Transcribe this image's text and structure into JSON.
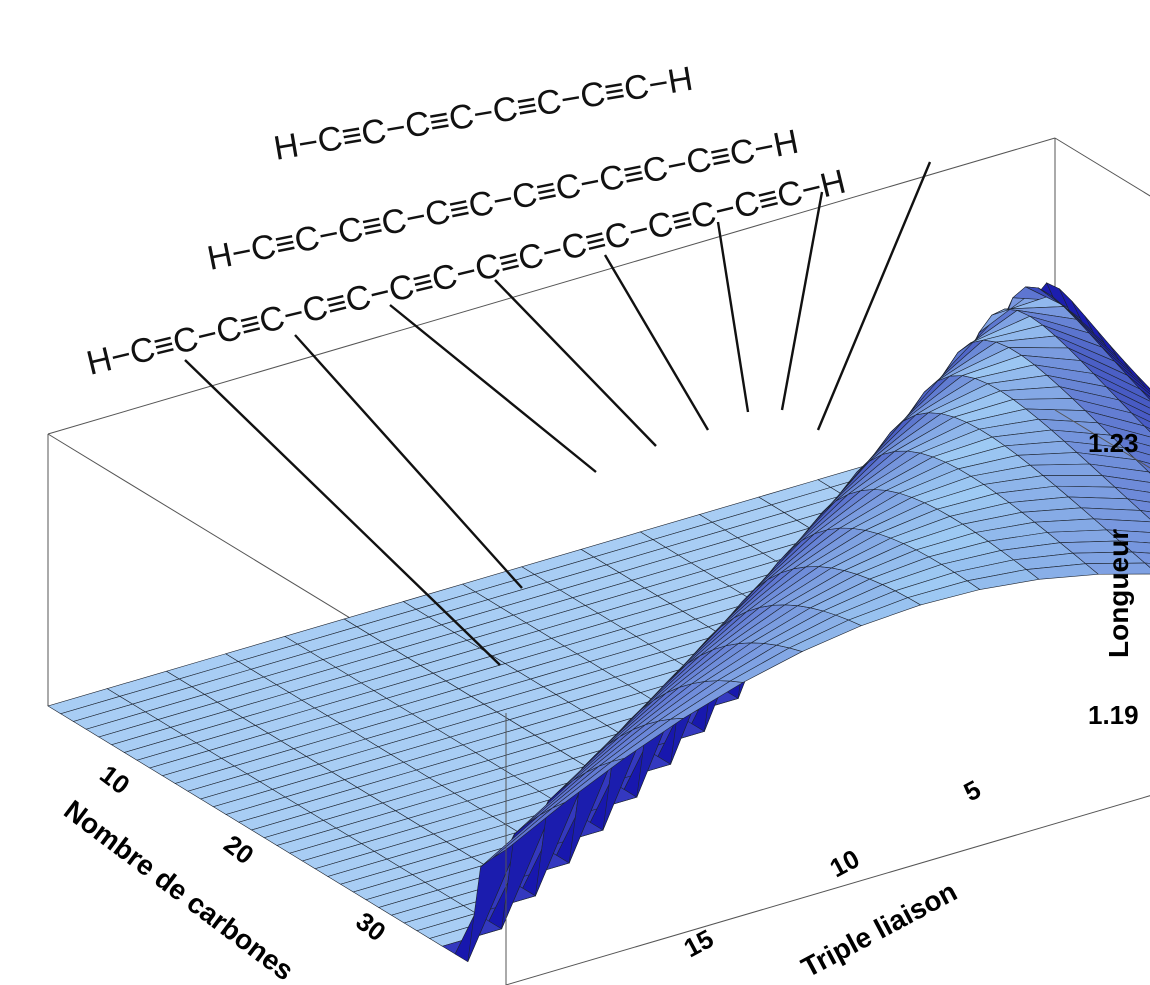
{
  "chart_data": {
    "type": "surface",
    "title": "",
    "xlabel": "Nombre de carbones",
    "ylabel": "Triple liaison",
    "zlabel": "Longueur",
    "x_ticks": [
      "10",
      "20",
      "30"
    ],
    "y_ticks": [
      "5",
      "10",
      "15"
    ],
    "z_ticks": [
      "1.19",
      "1.23"
    ],
    "xlim": [
      2,
      38
    ],
    "ylim": [
      1,
      18
    ],
    "zlim": [
      1.19,
      1.23
    ],
    "surface_model": "z is defined only for triple-bond index y <= x/2; z rises from 1.19 at y = 1 to a maximum of about 1.228 in the middle of the chain, falling back to about 1.21 at the chain end; z = 1.19 (flat) elsewhere",
    "annotations": [
      "H−C≡C−C≡C−C≡C−C≡C−H",
      "H−C≡C−C≡C−C≡C−C≡C−C≡C−C≡C−H",
      "H−C≡C−C≡C−C≡C−C≡C−C≡C−C≡C−C≡C−C≡C−H"
    ]
  },
  "colors": {
    "flat_surface": "#a8cdf4",
    "ridge_light": "#9ecbf2",
    "ridge_dark": "#1f2f9a",
    "end_face": "#6a2a78",
    "edge_sides": "#c04020"
  }
}
